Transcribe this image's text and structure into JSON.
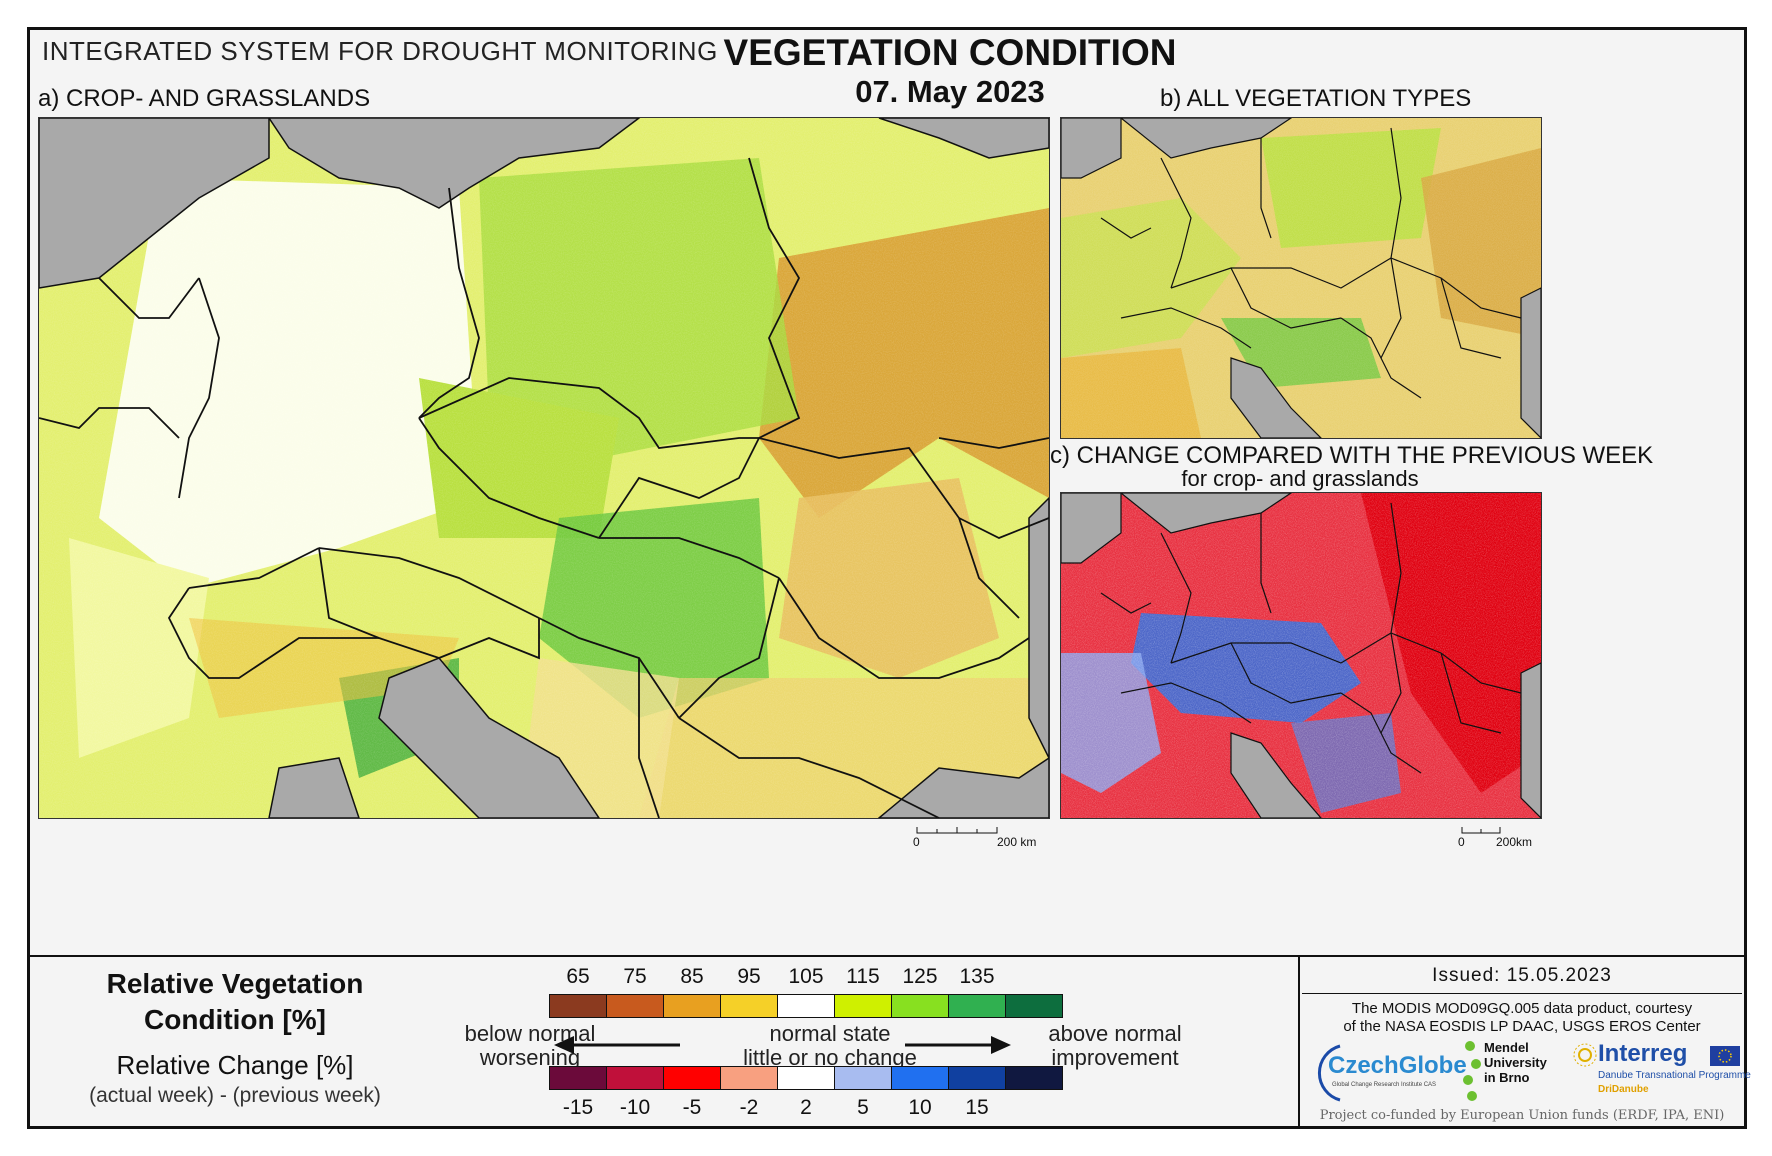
{
  "header": {
    "system": "INTEGRATED SYSTEM FOR DROUGHT MONITORING",
    "title": "VEGETATION CONDITION",
    "date": "07. May 2023"
  },
  "panels": {
    "a": {
      "title": "a) CROP- AND GRASSLANDS",
      "scale_start": "0",
      "scale_end": "200 km"
    },
    "b": {
      "title": "b) ALL VEGETATION TYPES"
    },
    "c": {
      "title": "c) CHANGE COMPARED WITH THE PREVIOUS WEEK",
      "subtitle": "for crop- and grasslands",
      "scale_start": "0",
      "scale_end": "200km"
    }
  },
  "legend": {
    "rvc_title": "Relative Vegetation",
    "rvc_title2": "Condition [%]",
    "rc_title": "Relative Change [%]",
    "rc_sub": "(actual week) - (previous week)",
    "rvc_ticks": [
      "65",
      "75",
      "85",
      "95",
      "105",
      "115",
      "125",
      "135"
    ],
    "rvc_colors": [
      "#8b3a1f",
      "#c85a1e",
      "#e8a020",
      "#f5d028",
      "#ffffff",
      "#cff000",
      "#88e020",
      "#30b050",
      "#0d6e3e"
    ],
    "rc_ticks": [
      "-15",
      "-10",
      "-5",
      "-2",
      "2",
      "5",
      "10",
      "15"
    ],
    "rc_colors": [
      "#6b0a3a",
      "#c0103a",
      "#ff0000",
      "#f8a080",
      "#ffffff",
      "#a8bcf0",
      "#2070f0",
      "#1040a0",
      "#101840"
    ],
    "below_1": "below normal",
    "below_2": "worsening",
    "normal_1": "normal state",
    "normal_2": "little or no change",
    "above_1": "above normal",
    "above_2": "improvement"
  },
  "issued": {
    "label": "Issued: 15.05.2023",
    "credit_1": "The MODIS MOD09GQ.005 data product, courtesy",
    "credit_2": "of the NASA EOSDIS LP DAAC, USGS EROS Center",
    "logo_czechglobe": "CzechGlobe",
    "logo_czechglobe_sub": "Global Change Research Institute CAS",
    "logo_mendel_1": "Mendel",
    "logo_mendel_2": "University",
    "logo_mendel_3": "in Brno",
    "logo_interreg": "Interreg",
    "logo_interreg_sub": "Danube Transnational Programme",
    "logo_dridanube": "DriDanube",
    "funded": "Project co-funded by European Union funds (ERDF, IPA, ENI)"
  }
}
